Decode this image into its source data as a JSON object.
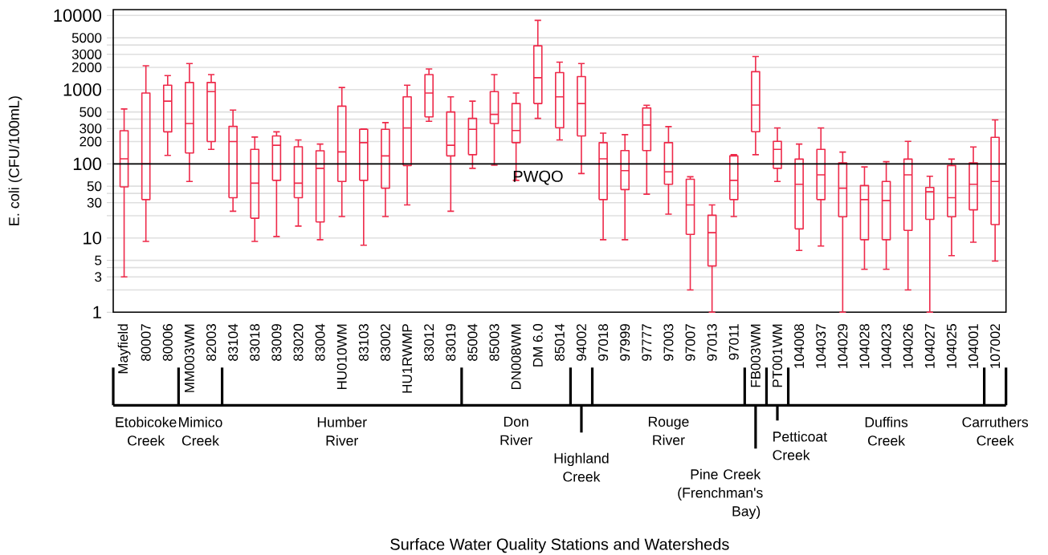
{
  "chart_data": {
    "type": "box",
    "ylabel": "E. coli (CFU/100mL)",
    "categories": [
      "Mayfield",
      "80007",
      "80006",
      "MM003WM",
      "82003",
      "83104",
      "83018",
      "83009",
      "83020",
      "83004",
      "HU010WM",
      "83103",
      "83002",
      "HU1RWMP",
      "83012",
      "83019",
      "85004",
      "85003",
      "DN008WM",
      "DM 6.0",
      "85014",
      "94002",
      "97018",
      "97999",
      "97777",
      "97003",
      "97007",
      "97013",
      "97011",
      "FB003WM",
      "PT001WM",
      "104008",
      "104037",
      "104029",
      "104028",
      "104023",
      "104026",
      "104027",
      "104025",
      "104001",
      "107002"
    ],
    "color": "#ee2a4a",
    "boxes": [
      {
        "low": 3,
        "q1": 49,
        "median": 117,
        "q3": 280,
        "high": 550
      },
      {
        "low": 9,
        "q1": 33,
        "median": 100,
        "q3": 900,
        "high": 2100
      },
      {
        "low": 130,
        "q1": 270,
        "median": 700,
        "q3": 1150,
        "high": 1550
      },
      {
        "low": 58,
        "q1": 140,
        "median": 350,
        "q3": 1250,
        "high": 2250
      },
      {
        "low": 157,
        "q1": 200,
        "median": 940,
        "q3": 1250,
        "high": 1600
      },
      {
        "low": 23,
        "q1": 35,
        "median": 200,
        "q3": 320,
        "high": 530
      },
      {
        "low": 9,
        "q1": 18.5,
        "median": 55,
        "q3": 157,
        "high": 230
      },
      {
        "low": 10.5,
        "q1": 60,
        "median": 178,
        "q3": 238,
        "high": 270
      },
      {
        "low": 14.5,
        "q1": 35,
        "median": 55,
        "q3": 170,
        "high": 210
      },
      {
        "low": 9.5,
        "q1": 16.5,
        "median": 87,
        "q3": 150,
        "high": 185
      },
      {
        "low": 19.5,
        "q1": 58,
        "median": 145,
        "q3": 600,
        "high": 1070
      },
      {
        "low": 8,
        "q1": 60,
        "median": 193,
        "q3": 292,
        "high": 295
      },
      {
        "low": 19.5,
        "q1": 47,
        "median": 128,
        "q3": 292,
        "high": 360
      },
      {
        "low": 28,
        "q1": 95,
        "median": 305,
        "q3": 800,
        "high": 1150
      },
      {
        "low": 375,
        "q1": 430,
        "median": 900,
        "q3": 1600,
        "high": 1900
      },
      {
        "low": 23,
        "q1": 128,
        "median": 178,
        "q3": 500,
        "high": 800
      },
      {
        "low": 87,
        "q1": 133,
        "median": 292,
        "q3": 410,
        "high": 700
      },
      {
        "low": 96,
        "q1": 350,
        "median": 465,
        "q3": 940,
        "high": 1600
      },
      {
        "low": 60,
        "q1": 193,
        "median": 281,
        "q3": 650,
        "high": 900
      },
      {
        "low": 410,
        "q1": 650,
        "median": 1450,
        "q3": 3900,
        "high": 8600
      },
      {
        "low": 210,
        "q1": 307,
        "median": 800,
        "q3": 1700,
        "high": 2350
      },
      {
        "low": 74,
        "q1": 238,
        "median": 650,
        "q3": 1500,
        "high": 2250
      },
      {
        "low": 9.5,
        "q1": 33,
        "median": 117,
        "q3": 193,
        "high": 260
      },
      {
        "low": 9.5,
        "q1": 45,
        "median": 81,
        "q3": 151,
        "high": 248
      },
      {
        "low": 39,
        "q1": 151,
        "median": 334,
        "q3": 567,
        "high": 616
      },
      {
        "low": 21,
        "q1": 53,
        "median": 78,
        "q3": 193,
        "high": 318
      },
      {
        "low": 2,
        "q1": 11.2,
        "median": 28,
        "q3": 62,
        "high": 67
      },
      {
        "low": 1,
        "q1": 4.2,
        "median": 11.8,
        "q3": 20.3,
        "high": 28
      },
      {
        "low": 19.5,
        "q1": 33,
        "median": 60,
        "q3": 128,
        "high": 133
      },
      {
        "low": 133,
        "q1": 271,
        "median": 620,
        "q3": 1750,
        "high": 2800
      },
      {
        "low": 58,
        "q1": 87,
        "median": 157,
        "q3": 201,
        "high": 305
      },
      {
        "low": 6.8,
        "q1": 13.3,
        "median": 53,
        "q3": 116,
        "high": 185
      },
      {
        "low": 7.8,
        "q1": 33,
        "median": 71,
        "q3": 157,
        "high": 305
      },
      {
        "low": 1,
        "q1": 19.4,
        "median": 47,
        "q3": 103,
        "high": 144
      },
      {
        "low": 3.8,
        "q1": 9.5,
        "median": 33,
        "q3": 51,
        "high": 91
      },
      {
        "low": 3.8,
        "q1": 9.5,
        "median": 32,
        "q3": 58,
        "high": 107
      },
      {
        "low": 2,
        "q1": 12.7,
        "median": 71,
        "q3": 116,
        "high": 201
      },
      {
        "low": 1,
        "q1": 17.9,
        "median": 42,
        "q3": 48,
        "high": 68
      },
      {
        "low": 5.8,
        "q1": 19.4,
        "median": 35,
        "q3": 95,
        "high": 116
      },
      {
        "low": 8.8,
        "q1": 24,
        "median": 53,
        "q3": 103,
        "high": 169
      },
      {
        "low": 4.9,
        "q1": 15.2,
        "median": 58,
        "q3": 228,
        "high": 391
      }
    ],
    "ylim": [
      1,
      12000
    ],
    "yticks": [
      1,
      {
        "value": 2,
        "label": null
      },
      3,
      {
        "value": 4,
        "label": null
      },
      5,
      10,
      {
        "value": 20,
        "label": null
      },
      30,
      {
        "value": 40,
        "label": null
      },
      50,
      100,
      200,
      300,
      {
        "value": 400,
        "label": null
      },
      500,
      1000,
      2000,
      3000,
      {
        "value": 4000,
        "label": null
      },
      5000,
      10000
    ],
    "log": "y",
    "grid": "y",
    "ref_lines": [
      {
        "axis": "y",
        "value": 100,
        "label": "PWQO",
        "color": "#000000"
      }
    ],
    "annotations": [
      "Etobicoke Creek",
      "Mimico Creek",
      "Humber River",
      "Don River",
      "Highland Creek",
      "Rouge River",
      "Pine Creek (Frenchman's Bay)",
      "Petticoat Creek",
      "Duffins Creek",
      "Carruthers Creek",
      "Surface Water Quality Stations and Watersheds"
    ]
  }
}
